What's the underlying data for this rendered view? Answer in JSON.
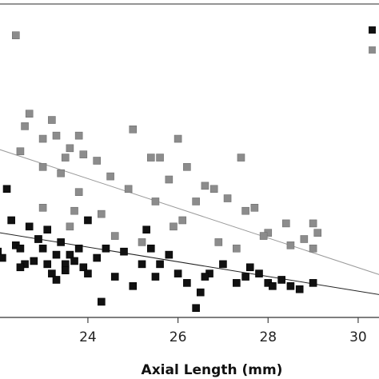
{
  "chart_data": {
    "type": "scatter",
    "xlabel": "Axial Length (mm)",
    "ylabel": "",
    "xlim": [
      21.8,
      30.8
    ],
    "ylim": [
      0,
      100
    ],
    "xticks": [
      24,
      26,
      28,
      30
    ],
    "grid": false,
    "legend": "top-right",
    "colors": {
      "series_black": "#111111",
      "series_gray": "#8c8c8c",
      "axis": "#444444"
    },
    "series": [
      {
        "color": "#111111",
        "trendline": {
          "x": [
            21.8,
            30.8
          ],
          "y": [
            27.6,
            6.5
          ]
        },
        "points": [
          [
            21.9,
            27
          ],
          [
            22.0,
            21
          ],
          [
            22.1,
            19
          ],
          [
            22.2,
            41
          ],
          [
            22.3,
            31
          ],
          [
            22.4,
            23
          ],
          [
            22.5,
            22
          ],
          [
            22.6,
            17
          ],
          [
            22.7,
            29
          ],
          [
            22.8,
            18
          ],
          [
            22.9,
            25
          ],
          [
            23.0,
            22
          ],
          [
            23.1,
            17
          ],
          [
            23.2,
            14
          ],
          [
            23.3,
            20
          ],
          [
            23.4,
            24
          ],
          [
            23.5,
            17
          ],
          [
            23.6,
            20
          ],
          [
            23.7,
            18
          ],
          [
            23.8,
            22
          ],
          [
            23.9,
            16
          ],
          [
            24.0,
            14
          ],
          [
            24.2,
            19
          ],
          [
            24.4,
            22
          ],
          [
            24.6,
            13
          ],
          [
            24.8,
            21
          ],
          [
            25.0,
            10
          ],
          [
            25.2,
            17
          ],
          [
            25.4,
            22
          ],
          [
            25.5,
            13
          ],
          [
            25.6,
            17
          ],
          [
            25.8,
            20
          ],
          [
            26.0,
            14
          ],
          [
            26.2,
            11
          ],
          [
            26.5,
            8
          ],
          [
            26.7,
            14
          ],
          [
            27.0,
            17
          ],
          [
            27.3,
            11
          ],
          [
            27.5,
            13
          ],
          [
            27.8,
            14
          ],
          [
            28.0,
            11
          ],
          [
            28.3,
            12
          ],
          [
            28.5,
            10
          ],
          [
            28.7,
            9
          ],
          [
            29.0,
            11
          ],
          [
            22.5,
            16
          ],
          [
            23.3,
            12
          ],
          [
            24.3,
            5
          ],
          [
            23.1,
            28
          ],
          [
            24.0,
            31
          ],
          [
            25.3,
            28
          ],
          [
            26.6,
            13
          ],
          [
            27.6,
            16
          ],
          [
            28.1,
            10
          ],
          [
            26.4,
            3
          ],
          [
            23.5,
            15
          ]
        ]
      },
      {
        "color": "#8c8c8c",
        "trendline": {
          "x": [
            21.8,
            30.8
          ],
          "y": [
            54.7,
            12.1
          ]
        },
        "points": [
          [
            22.4,
            90
          ],
          [
            22.6,
            61
          ],
          [
            22.5,
            53
          ],
          [
            22.7,
            65
          ],
          [
            23.0,
            57
          ],
          [
            23.3,
            58
          ],
          [
            23.5,
            51
          ],
          [
            23.8,
            58
          ],
          [
            23.9,
            52
          ],
          [
            23.6,
            54
          ],
          [
            23.2,
            63
          ],
          [
            23.0,
            48
          ],
          [
            24.2,
            50
          ],
          [
            24.5,
            45
          ],
          [
            25.0,
            60
          ],
          [
            25.4,
            51
          ],
          [
            25.6,
            51
          ],
          [
            25.8,
            44
          ],
          [
            26.0,
            57
          ],
          [
            26.2,
            48
          ],
          [
            26.4,
            37
          ],
          [
            26.6,
            42
          ],
          [
            26.8,
            41
          ],
          [
            27.1,
            38
          ],
          [
            27.4,
            51
          ],
          [
            27.5,
            34
          ],
          [
            27.7,
            35
          ],
          [
            28.0,
            27
          ],
          [
            28.4,
            30
          ],
          [
            28.8,
            25
          ],
          [
            29.0,
            30
          ],
          [
            29.1,
            27
          ],
          [
            23.4,
            46
          ],
          [
            23.8,
            40
          ],
          [
            24.3,
            33
          ],
          [
            24.9,
            41
          ],
          [
            25.5,
            37
          ],
          [
            25.9,
            29
          ],
          [
            26.9,
            24
          ],
          [
            27.3,
            22
          ],
          [
            27.9,
            26
          ],
          [
            28.5,
            23
          ],
          [
            29.0,
            22
          ],
          [
            23.0,
            35
          ],
          [
            23.6,
            29
          ],
          [
            24.6,
            26
          ],
          [
            26.1,
            31
          ],
          [
            22.9,
            25
          ],
          [
            23.7,
            34
          ],
          [
            25.2,
            24
          ]
        ]
      }
    ]
  }
}
